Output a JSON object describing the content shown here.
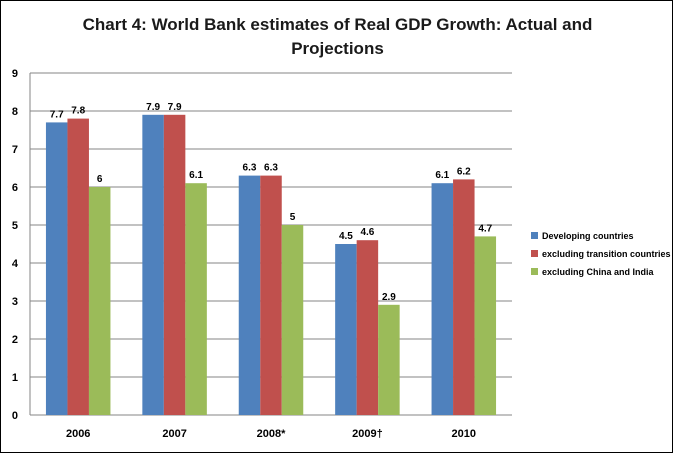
{
  "chart_data": {
    "type": "bar",
    "title": "Chart 4:  World Bank estimates of Real GDP Growth: Actual and Projections",
    "categories": [
      "2006",
      "2007",
      "2008*",
      "2009†",
      "2010"
    ],
    "series": [
      {
        "name": "Developing countries",
        "color": "#4F81BD",
        "values": [
          7.7,
          7.9,
          6.3,
          4.5,
          6.1
        ],
        "labels": [
          "7.7",
          "7.9",
          "6.3",
          "4.5",
          "6.1"
        ]
      },
      {
        "name": "excluding transition countries",
        "color": "#C0504D",
        "values": [
          7.8,
          7.9,
          6.3,
          4.6,
          6.2
        ],
        "labels": [
          "7.8",
          "7.9",
          "6.3",
          "4.6",
          "6.2"
        ]
      },
      {
        "name": "excluding China and India",
        "color": "#9BBB59",
        "values": [
          6,
          6.1,
          5,
          2.9,
          4.7
        ],
        "labels": [
          "6",
          "6.1",
          "5",
          "2.9",
          "4.7"
        ]
      }
    ],
    "ylim": [
      0,
      9
    ],
    "yticks": [
      "0",
      "1",
      "2",
      "3",
      "4",
      "5",
      "6",
      "7",
      "8",
      "9"
    ],
    "xlabel": "",
    "ylabel": "",
    "grid": true,
    "legend_position": "right"
  }
}
